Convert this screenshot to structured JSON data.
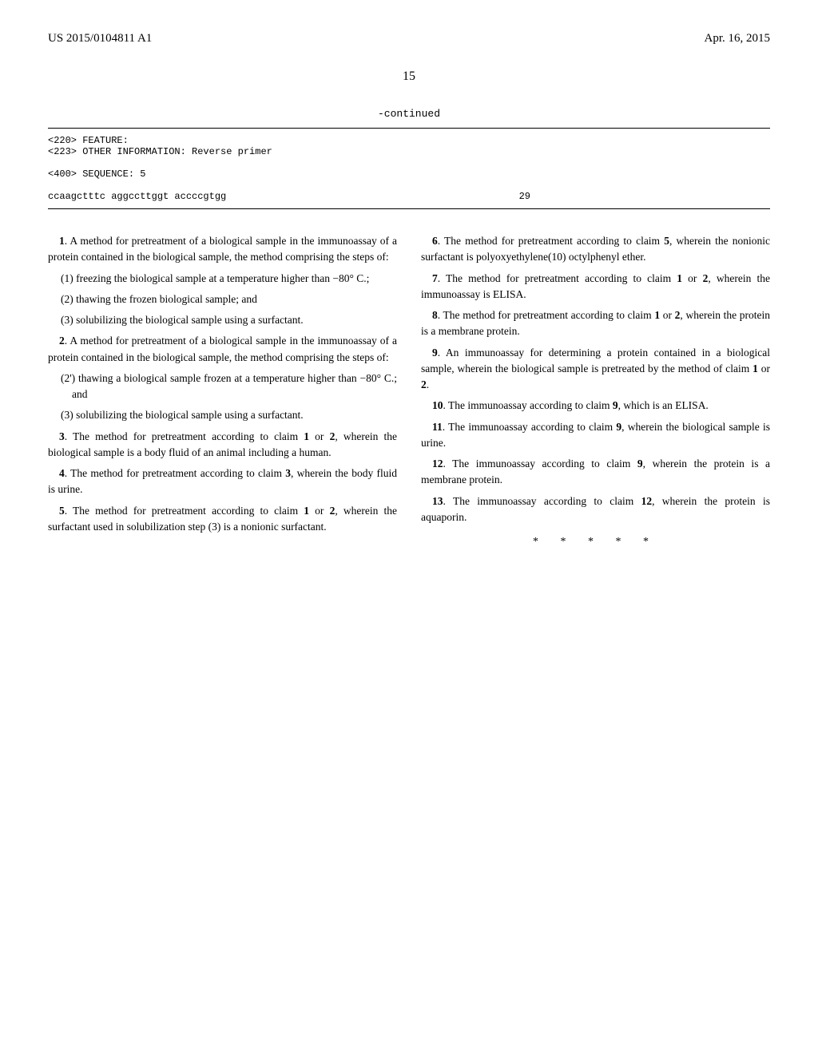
{
  "header": {
    "patentNumber": "US 2015/0104811 A1",
    "date": "Apr. 16, 2015"
  },
  "pageNumber": "15",
  "continued": "-continued",
  "sequence": {
    "feature": "<220> FEATURE:",
    "otherInfo": "<223> OTHER INFORMATION: Reverse primer",
    "seqLabel": "<400> SEQUENCE: 5",
    "seqData": "ccaagctttc aggccttggt accccgtgg",
    "seqNum": "29"
  },
  "claims": {
    "c1": {
      "intro": ". A method for pretreatment of a biological sample in the immunoassay of a protein contained in the biological sample, the method comprising the steps of:",
      "s1": "(1) freezing the biological sample at a temperature higher than −80° C.;",
      "s2": "(2) thawing the frozen biological sample; and",
      "s3": "(3) solubilizing the biological sample using a surfactant."
    },
    "c2": {
      "intro": ". A method for pretreatment of a biological sample in the immunoassay of a protein contained in the biological sample, the method comprising the steps of:",
      "s1": "(2') thawing a biological sample frozen at a temperature higher than −80° C.; and",
      "s2": "(3) solubilizing the biological sample using a surfactant."
    },
    "c3": ". The method for pretreatment according to claim ",
    "c3b": ", wherein the biological sample is a body fluid of an animal including a human.",
    "c4": ". The method for pretreatment according to claim ",
    "c4b": ", wherein the body fluid is urine.",
    "c5": ". The method for pretreatment according to claim ",
    "c5b": ", wherein the surfactant used in solubilization step (3) is a nonionic surfactant.",
    "c6": ". The method for pretreatment according to claim ",
    "c6b": ", wherein the nonionic surfactant is polyoxyethylene(10) octylphenyl ether.",
    "c7": ". The method for pretreatment according to claim ",
    "c7b": ", wherein the immunoassay is ELISA.",
    "c8": ". The method for pretreatment according to claim ",
    "c8b": ", wherein the protein is a membrane protein.",
    "c9": ". An immunoassay for determining a protein contained in a biological sample, wherein the biological sample is pretreated by the method of claim ",
    "c9b": ".",
    "c10": ". The immunoassay according to claim ",
    "c10b": ", which is an ELISA.",
    "c11": ". The immunoassay according to claim ",
    "c11b": ", wherein the biological sample is urine.",
    "c12": ". The immunoassay according to claim ",
    "c12b": ", wherein the protein is a membrane protein.",
    "c13": ". The immunoassay according to claim ",
    "c13b": ", wherein the protein is aquaporin.",
    "or": " or ",
    "n1": "1",
    "n2": "2",
    "n3": "3",
    "n4": "4",
    "n5": "5",
    "n6": "6",
    "n7": "7",
    "n8": "8",
    "n9": "9",
    "n10": "10",
    "n11": "11",
    "n12": "12",
    "n13": "13"
  },
  "asterisks": "* * * * *"
}
